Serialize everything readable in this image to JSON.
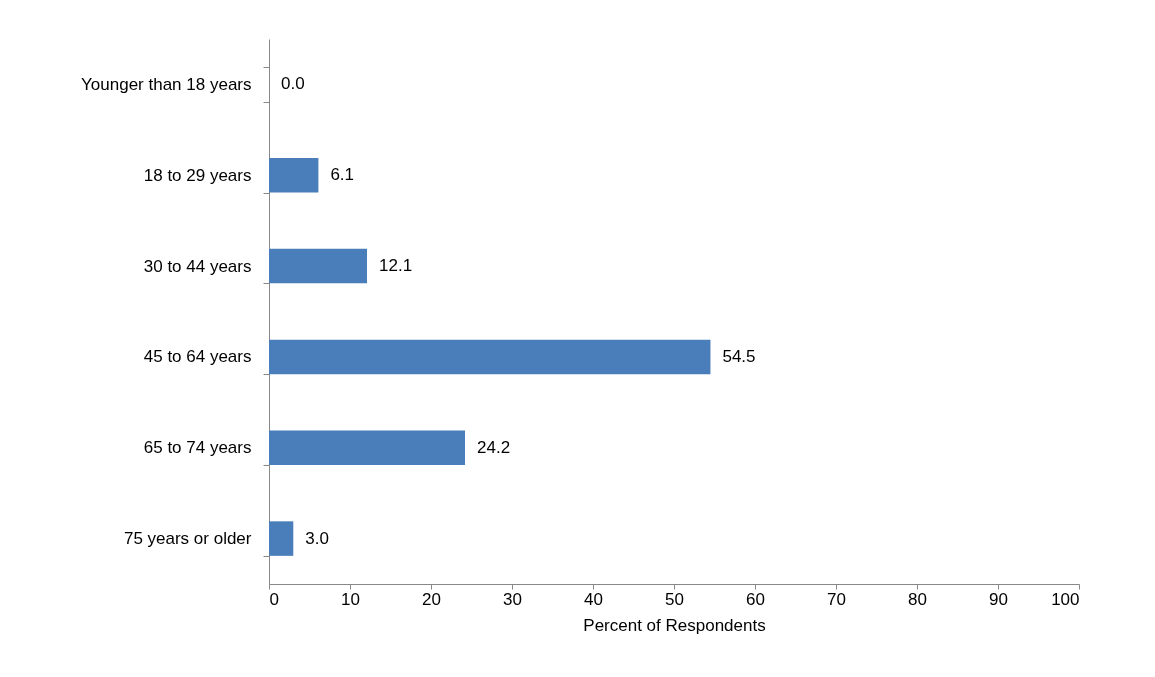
{
  "chart_data": {
    "type": "bar",
    "orientation": "horizontal",
    "xlabel": "Percent of Respondents",
    "categories": [
      "Younger than 18 years",
      "18 to 29 years",
      "30 to 44 years",
      "45 to 64 years",
      "65 to 74 years",
      "75 years or older"
    ],
    "values": [
      0.0,
      6.1,
      12.1,
      54.5,
      24.2,
      3.0
    ],
    "value_labels": [
      "0.0",
      "6.1",
      "12.1",
      "54.5",
      "24.2",
      "3.0"
    ],
    "color": "#4a7ebb",
    "xlim": [
      0,
      100
    ],
    "xticks": [
      0,
      10,
      20,
      30,
      40,
      50,
      60,
      70,
      80,
      90,
      100
    ],
    "grid": false
  }
}
